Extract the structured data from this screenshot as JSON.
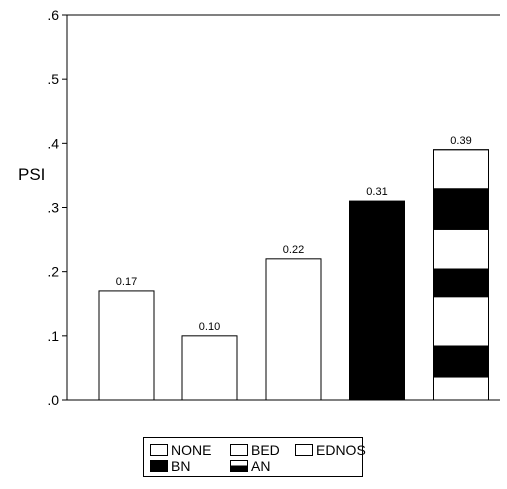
{
  "chart_data": {
    "type": "bar",
    "ylabel": "PSI",
    "xlabel": "",
    "title": "",
    "ylim": [
      0,
      0.6
    ],
    "yticks": [
      ".0",
      ".1",
      ".2",
      ".3",
      ".4",
      ".5",
      ".6"
    ],
    "categories": [
      "NONE",
      "BED",
      "EDNOS",
      "BN",
      "AN"
    ],
    "values": [
      0.17,
      0.1,
      0.22,
      0.31,
      0.39
    ],
    "data_labels": [
      "0.17",
      "0.10",
      "0.22",
      "0.31",
      "0.39"
    ],
    "fills": [
      "white",
      "white",
      "white",
      "black",
      "striped"
    ],
    "legend": {
      "placement": "bottom",
      "entries": [
        {
          "label": "NONE",
          "fill": "white"
        },
        {
          "label": "BED",
          "fill": "white"
        },
        {
          "label": "EDNOS",
          "fill": "white"
        },
        {
          "label": "BN",
          "fill": "black"
        },
        {
          "label": "AN",
          "fill": "half"
        }
      ]
    },
    "grid": false
  }
}
